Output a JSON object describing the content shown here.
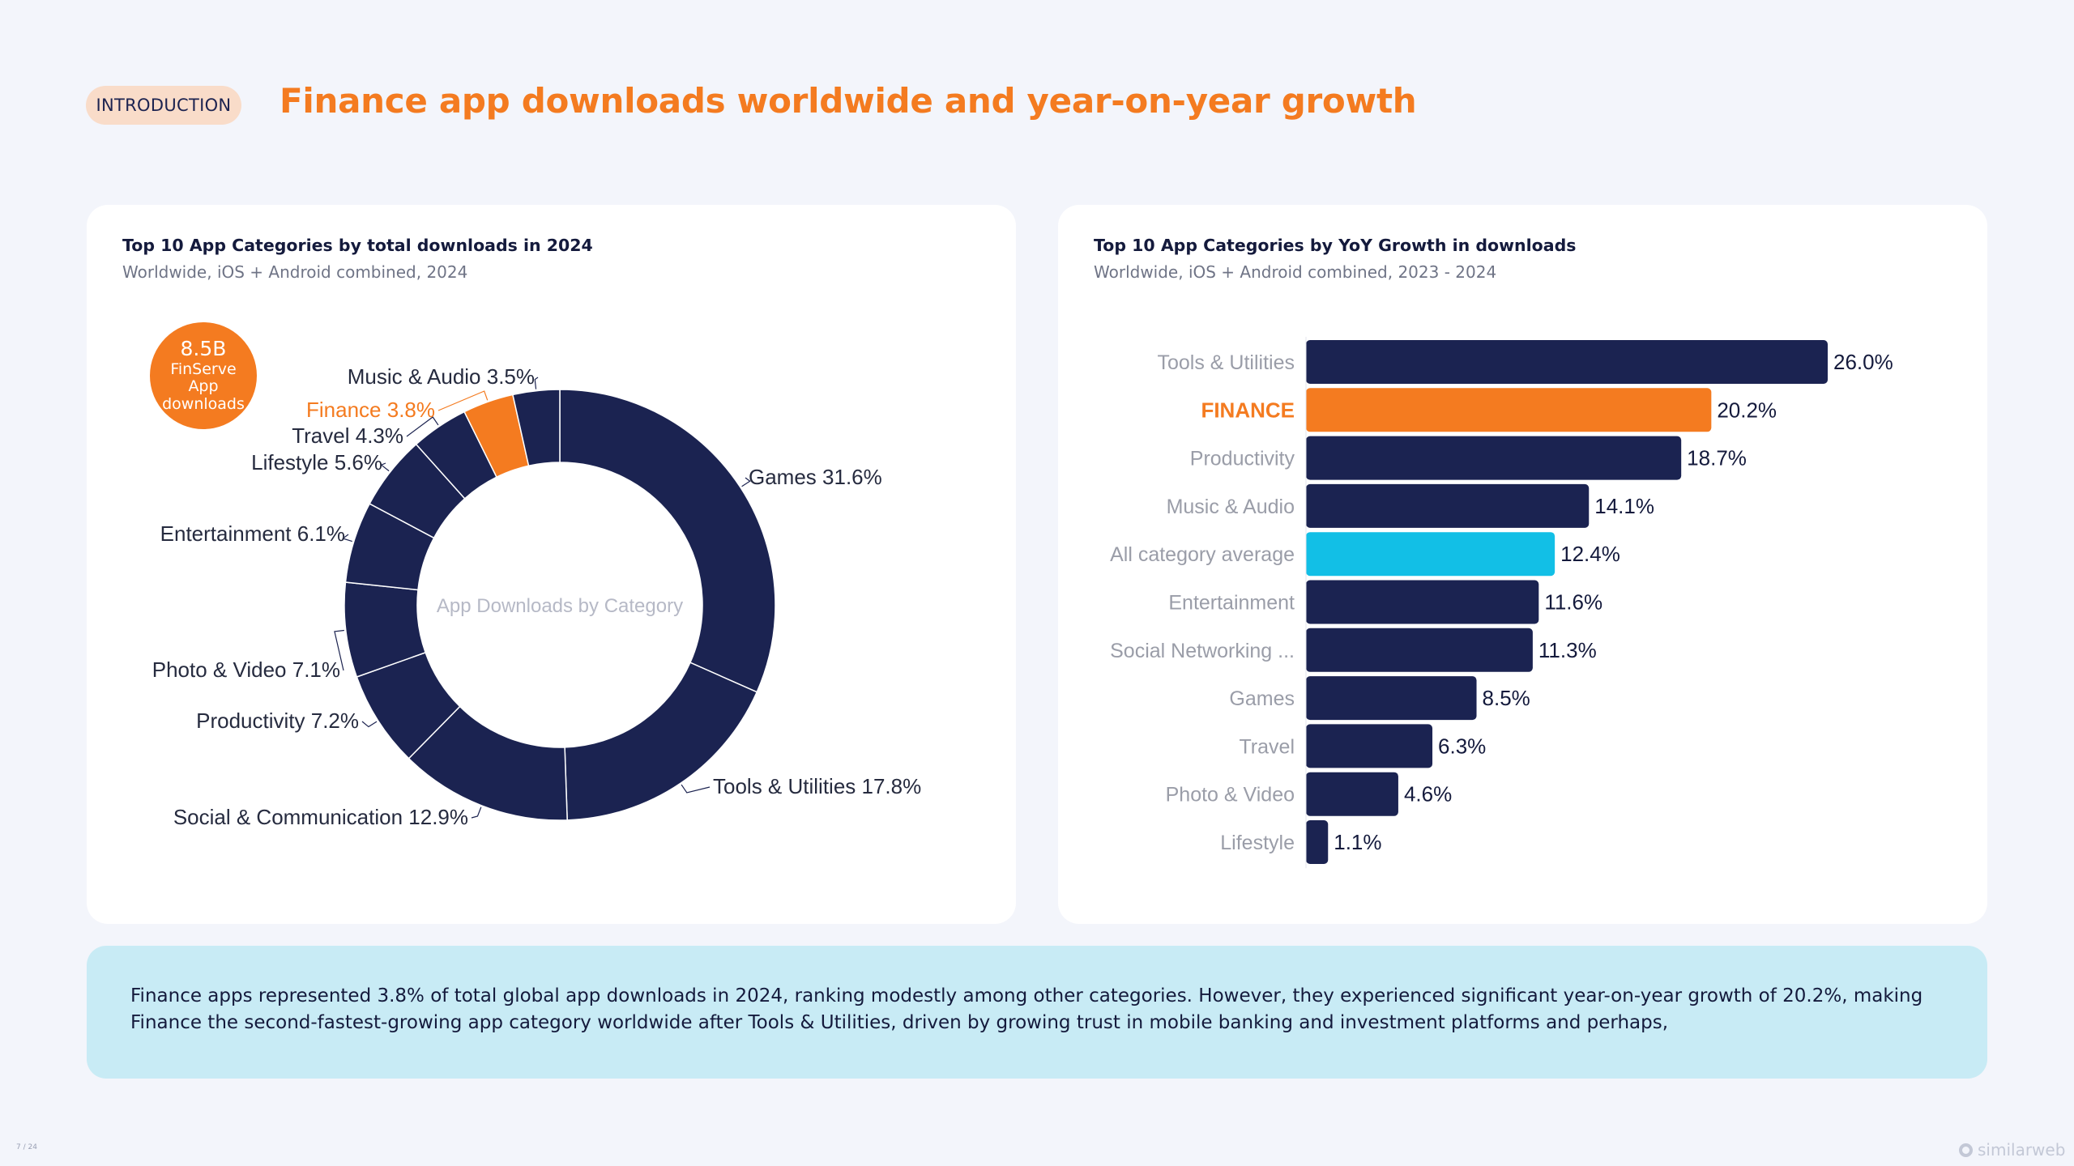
{
  "header": {
    "section_label": "INTRODUCTION",
    "title": "Finance app downloads worldwide and year-on-year growth"
  },
  "left_card": {
    "title": "Top 10 App Categories by total downloads in 2024",
    "subtitle": "Worldwide, iOS + Android combined, 2024",
    "badge": {
      "value": "8.5B",
      "label": "FinServe App downloads"
    }
  },
  "right_card": {
    "title": "Top 10 App Categories by YoY Growth in downloads",
    "subtitle": "Worldwide, iOS + Android combined, 2023 - 2024"
  },
  "summary": {
    "text": "Finance apps represented 3.8% of total global app downloads in 2024, ranking modestly among other categories. However, they experienced significant year-on-year growth of 20.2%, making Finance the second-fastest-growing app category worldwide after Tools & Utilities, driven by growing trust in mobile banking and investment platforms and perhaps,"
  },
  "footer": {
    "page_number": "7 / 24",
    "brand": "similarweb"
  },
  "colors": {
    "navy": "#1b2351",
    "orange": "#f47b20",
    "cyan": "#12bfe6",
    "label_gray": "#9a9da8"
  },
  "chart_data": [
    {
      "type": "pie",
      "variant": "donut",
      "title": "Top 10 App Categories by total downloads in 2024",
      "center_label": "App Downloads by Category",
      "highlight": "Finance",
      "slices": [
        {
          "name": "Games",
          "value": 31.6,
          "label": "Games 31.6%"
        },
        {
          "name": "Tools & Utilities",
          "value": 17.8,
          "label": "Tools & Utilities 17.8%"
        },
        {
          "name": "Social & Communication",
          "value": 12.9,
          "label": "Social & Communication 12.9%"
        },
        {
          "name": "Productivity",
          "value": 7.2,
          "label": "Productivity 7.2%"
        },
        {
          "name": "Photo & Video",
          "value": 7.1,
          "label": "Photo & Video 7.1%"
        },
        {
          "name": "Entertainment",
          "value": 6.1,
          "label": "Entertainment 6.1%"
        },
        {
          "name": "Lifestyle",
          "value": 5.6,
          "label": "Lifestyle 5.6%"
        },
        {
          "name": "Travel",
          "value": 4.3,
          "label": "Travel 4.3%"
        },
        {
          "name": "Finance",
          "value": 3.8,
          "label": "Finance 3.8%"
        },
        {
          "name": "Music & Audio",
          "value": 3.5,
          "label": "Music & Audio 3.5%"
        }
      ]
    },
    {
      "type": "bar",
      "orientation": "horizontal",
      "title": "Top 10 App Categories by YoY Growth in downloads",
      "xlim": [
        0,
        26
      ],
      "bars": [
        {
          "category": "Tools & Utilities",
          "value": 26.0,
          "label": "26.0%",
          "style": "default"
        },
        {
          "category": "FINANCE",
          "value": 20.2,
          "label": "20.2%",
          "style": "highlight"
        },
        {
          "category": "Productivity",
          "value": 18.7,
          "label": "18.7%",
          "style": "default"
        },
        {
          "category": "Music & Audio",
          "value": 14.1,
          "label": "14.1%",
          "style": "default"
        },
        {
          "category": "All category average",
          "value": 12.4,
          "label": "12.4%",
          "style": "average"
        },
        {
          "category": "Entertainment",
          "value": 11.6,
          "label": "11.6%",
          "style": "default"
        },
        {
          "category": "Social Networking ...",
          "value": 11.3,
          "label": "11.3%",
          "style": "default"
        },
        {
          "category": "Games",
          "value": 8.5,
          "label": "8.5%",
          "style": "default"
        },
        {
          "category": "Travel",
          "value": 6.3,
          "label": "6.3%",
          "style": "default"
        },
        {
          "category": "Photo & Video",
          "value": 4.6,
          "label": "4.6%",
          "style": "default"
        },
        {
          "category": "Lifestyle",
          "value": 1.1,
          "label": "1.1%",
          "style": "default"
        }
      ]
    }
  ]
}
